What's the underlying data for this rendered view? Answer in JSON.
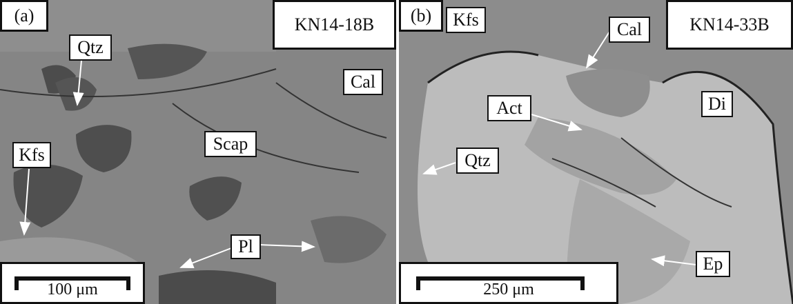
{
  "panels": [
    {
      "label": "(a)",
      "sample": "KN14-18B",
      "scale_bar": "100 μm",
      "minerals": [
        "Qtz",
        "Cal",
        "Kfs",
        "Scap",
        "Pl"
      ]
    },
    {
      "label": "(b)",
      "sample": "KN14-33B",
      "scale_bar": "250 μm",
      "minerals": [
        "Kfs",
        "Cal",
        "Di",
        "Act",
        "Qtz",
        "Ep"
      ]
    }
  ]
}
